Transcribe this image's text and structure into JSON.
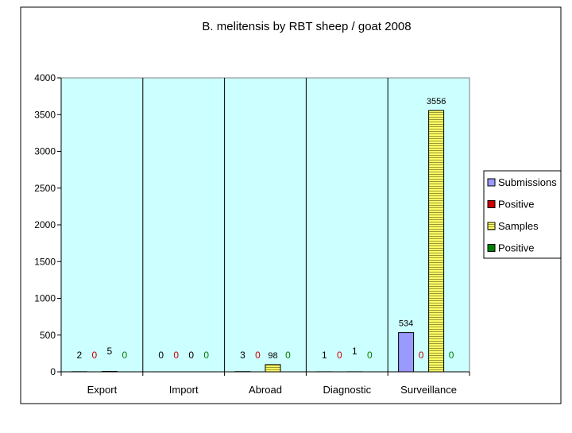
{
  "chart_data": {
    "type": "bar",
    "title": "B. melitensis by RBT sheep / goat 2008",
    "xlabel": "",
    "ylabel": "",
    "ylim": [
      0,
      4000
    ],
    "yticks": [
      "0",
      "500",
      "1000",
      "1500",
      "2000",
      "2500",
      "3000",
      "3500",
      "4000"
    ],
    "categories": [
      "Export",
      "Import",
      "Abroad",
      "Diagnostic",
      "Surveillance"
    ],
    "grid": true,
    "legend_position": "right",
    "plot_background": "#ccffff",
    "series": [
      {
        "name": "Submissions",
        "values": [
          2,
          0,
          3,
          1,
          534
        ],
        "labels": [
          "2",
          "0",
          "3",
          "1",
          "534"
        ],
        "color": "#9999ff",
        "label_color": "#000000"
      },
      {
        "name": "Positive",
        "values": [
          0,
          0,
          0,
          0,
          0
        ],
        "labels": [
          "0",
          "0",
          "0",
          "0",
          "0"
        ],
        "color": "#cc0000",
        "label_color": "#cc0000"
      },
      {
        "name": "Samples",
        "values": [
          5,
          0,
          98,
          1,
          3556
        ],
        "labels": [
          "5",
          "0",
          "98",
          "1",
          "3556"
        ],
        "color": "#ffff66",
        "label_color": "#000000",
        "pattern": "horizontal-lines"
      },
      {
        "name": "Positive",
        "values": [
          0,
          0,
          0,
          0,
          0
        ],
        "labels": [
          "0",
          "0",
          "0",
          "0",
          "0"
        ],
        "color": "#008000",
        "label_color": "#008000"
      }
    ]
  }
}
